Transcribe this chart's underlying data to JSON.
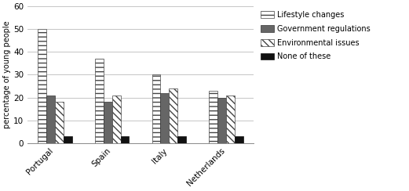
{
  "categories": [
    "Portugal",
    "Spain",
    "Italy",
    "Netherlands"
  ],
  "series": {
    "Lifestyle changes": [
      50,
      37,
      30,
      23
    ],
    "Government regulations": [
      21,
      18,
      22,
      20
    ],
    "Environmental issues": [
      18,
      21,
      24,
      21
    ],
    "None of these": [
      3,
      3,
      3,
      3
    ]
  },
  "ylabel": "percentage of young people",
  "ylim": [
    0,
    60
  ],
  "yticks": [
    0,
    10,
    20,
    30,
    40,
    50,
    60
  ],
  "bar_width": 0.15,
  "background_color": "#ffffff",
  "grid_color": "#bbbbbb",
  "legend_labels": [
    "Lifestyle changes",
    "Government regulations",
    "Environmental issues",
    "None of these"
  ],
  "hatches": [
    "---",
    "",
    "\\\\\\\\",
    ""
  ],
  "colors": [
    "#ffffff",
    "#666666",
    "#ffffff",
    "#111111"
  ],
  "edge_colors": [
    "#444444",
    "#333333",
    "#444444",
    "#111111"
  ]
}
